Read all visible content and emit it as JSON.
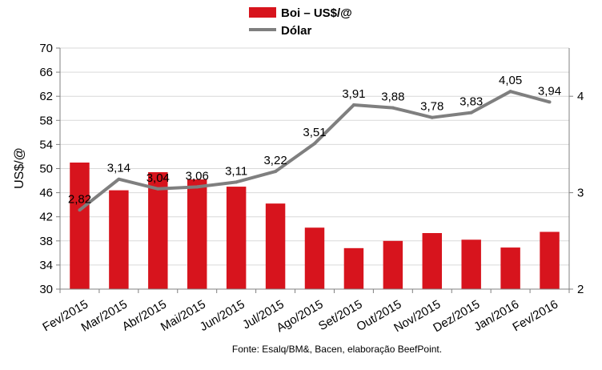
{
  "chart_data": {
    "type": "bar",
    "categories": [
      "Fev/2015",
      "Mar/2015",
      "Abr/2015",
      "Mai/2015",
      "Jun/2015",
      "Jul/2015",
      "Ago/2015",
      "Set/2015",
      "Out/2015",
      "Nov/2015",
      "Dez/2015",
      "Jan/2016",
      "Fev/2016"
    ],
    "series": [
      {
        "name": "Boi – US$/@",
        "type": "bar",
        "axis": "left",
        "color": "#d7141d",
        "values": [
          51.0,
          46.4,
          49.4,
          48.2,
          47.0,
          44.2,
          40.2,
          36.8,
          38.0,
          39.3,
          38.2,
          36.9,
          39.5
        ]
      },
      {
        "name": "Dólar",
        "type": "line",
        "axis": "right",
        "color": "#7f7f7f",
        "values": [
          2.82,
          3.14,
          3.04,
          3.06,
          3.11,
          3.22,
          3.51,
          3.91,
          3.88,
          3.78,
          3.83,
          4.05,
          3.94
        ],
        "labels": [
          "2,82",
          "3,14",
          "3,04",
          "3,06",
          "3,11",
          "3,22",
          "3,51",
          "3,91",
          "3,88",
          "3,78",
          "3,83",
          "4,05",
          "3,94"
        ]
      }
    ],
    "ylabel": "US$/@",
    "ylim": [
      30,
      70
    ],
    "yticks": [
      30,
      34,
      38,
      42,
      46,
      50,
      54,
      58,
      62,
      66,
      70
    ],
    "y2lim": [
      2,
      4.5
    ],
    "y2ticks": [
      2,
      3,
      4
    ],
    "grid": true,
    "legend": "top-center",
    "source": "Fonte:  Esalq/BM&,  Bacen,  elaboração  BeefPoint."
  }
}
